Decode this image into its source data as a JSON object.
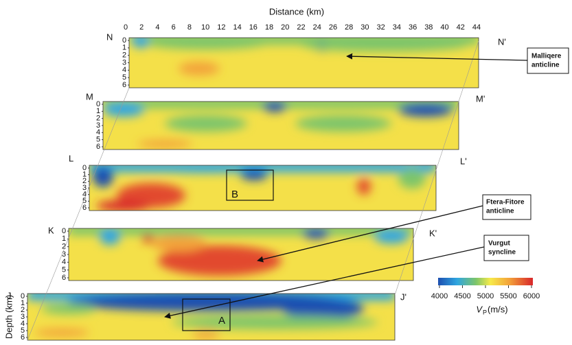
{
  "figure": {
    "x_axis_label": "Distance (km)",
    "y_axis_label": "Depth (km)",
    "distance_ticks": [
      0,
      2,
      4,
      6,
      8,
      10,
      12,
      14,
      16,
      18,
      20,
      22,
      24,
      26,
      28,
      30,
      32,
      34,
      36,
      38,
      40,
      42,
      44
    ],
    "depth_ticks": [
      0,
      1,
      2,
      3,
      4,
      5,
      6
    ],
    "panels": [
      {
        "left": "N",
        "right": "N'"
      },
      {
        "left": "M",
        "right": "M'"
      },
      {
        "left": "L",
        "right": "L'"
      },
      {
        "left": "K",
        "right": "K'"
      },
      {
        "left": "J",
        "right": "J'"
      }
    ],
    "boxes": [
      "B",
      "A"
    ],
    "annotations": [
      {
        "lines": [
          "Malliqere",
          "anticline"
        ]
      },
      {
        "lines": [
          "Ftera-Fitore",
          "anticline"
        ]
      },
      {
        "lines": [
          "Vurgut",
          "syncline"
        ]
      }
    ],
    "colorbar": {
      "ticks": [
        4000,
        4500,
        5000,
        5500,
        6000
      ],
      "label": "V",
      "label_sub": "P",
      "label_unit": "(m/s)"
    }
  }
}
